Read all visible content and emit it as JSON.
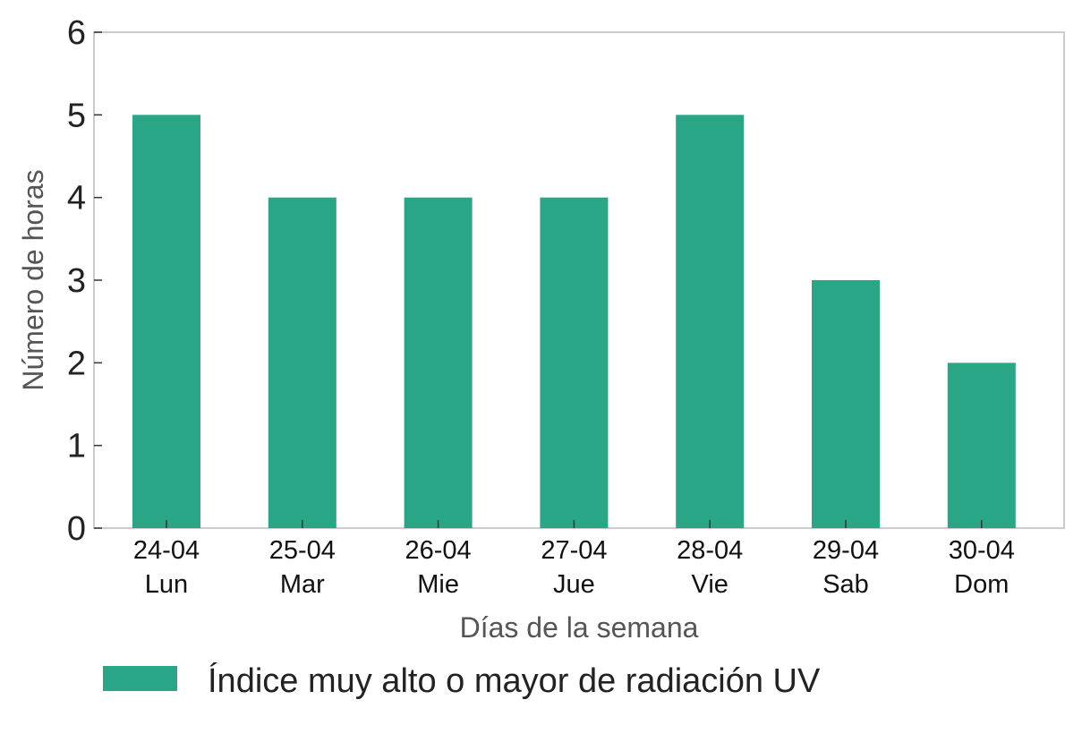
{
  "chart_data": {
    "type": "bar",
    "categories": [
      [
        "24-04",
        "Lun"
      ],
      [
        "25-04",
        "Mar"
      ],
      [
        "26-04",
        "Mie"
      ],
      [
        "27-04",
        "Jue"
      ],
      [
        "28-04",
        "Vie"
      ],
      [
        "29-04",
        "Sab"
      ],
      [
        "30-04",
        "Dom"
      ]
    ],
    "series": [
      {
        "name": "Índice muy alto o mayor de radiación UV",
        "values": [
          5,
          4,
          4,
          4,
          5,
          3,
          2
        ],
        "color": "#29a686"
      }
    ],
    "xlabel": "Días de la semana",
    "ylabel": "Número de horas",
    "ylim": [
      0,
      6
    ],
    "yticks": [
      "0",
      "1",
      "2",
      "3",
      "4",
      "5",
      "6"
    ],
    "grid": false,
    "legend_position": "bottom"
  }
}
